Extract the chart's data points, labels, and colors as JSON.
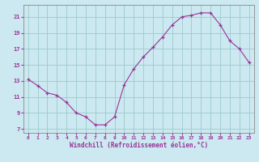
{
  "hours": [
    0,
    1,
    2,
    3,
    4,
    5,
    6,
    7,
    8,
    9,
    10,
    11,
    12,
    13,
    14,
    15,
    16,
    17,
    18,
    19,
    20,
    21,
    22,
    23
  ],
  "windchill": [
    13.2,
    12.4,
    11.5,
    11.2,
    10.3,
    9.0,
    8.5,
    7.5,
    7.5,
    8.5,
    12.5,
    14.5,
    16.0,
    17.2,
    18.5,
    20.0,
    21.0,
    21.2,
    21.5,
    21.5,
    20.0,
    18.0,
    17.0,
    15.3
  ],
  "ylim": [
    6.5,
    22.5
  ],
  "yticks": [
    7,
    9,
    11,
    13,
    15,
    17,
    19,
    21
  ],
  "xticks": [
    0,
    1,
    2,
    3,
    4,
    5,
    6,
    7,
    8,
    9,
    10,
    11,
    12,
    13,
    14,
    15,
    16,
    17,
    18,
    19,
    20,
    21,
    22,
    23
  ],
  "line_color": "#993399",
  "marker": "+",
  "bg_color": "#cce8f0",
  "grid_color": "#99cccc",
  "xlabel": "Windchill (Refroidissement éolien,°C)",
  "tick_color": "#993399",
  "label_color": "#993399"
}
